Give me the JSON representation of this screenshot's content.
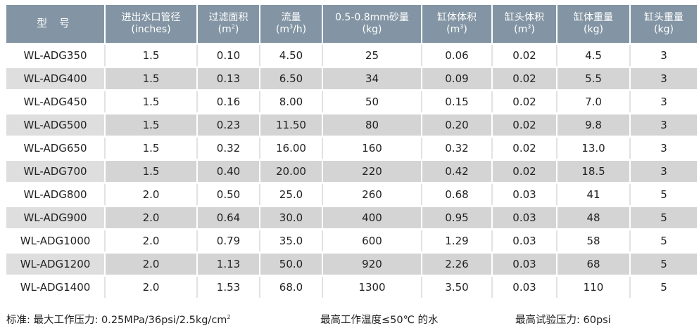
{
  "headers": [
    {
      "line1": "型 号",
      "unit": "",
      "sup": ""
    },
    {
      "line1": "进出水口管径",
      "unit": "(inches)",
      "sup": ""
    },
    {
      "line1": "过滤面积",
      "unit": "(m",
      "sup": "2",
      "unit_tail": ")"
    },
    {
      "line1": "流量",
      "unit": "(m",
      "sup": "3",
      "unit_tail": "/h)"
    },
    {
      "line1": "0.5-0.8mm砂量",
      "unit": "(kg)",
      "sup": ""
    },
    {
      "line1": "缸体体积",
      "unit": "(m",
      "sup": "3",
      "unit_tail": ")"
    },
    {
      "line1": "缸头体积",
      "unit": "(m",
      "sup": "3",
      "unit_tail": ")"
    },
    {
      "line1": "缸体重量",
      "unit": "(kg)",
      "sup": ""
    },
    {
      "line1": "缸头重量",
      "unit": "(kg)",
      "sup": ""
    }
  ],
  "rows": [
    [
      "WL-ADG350",
      "1.5",
      "0.10",
      "4.50",
      "25",
      "0.06",
      "0.02",
      "4.5",
      "3"
    ],
    [
      "WL-ADG400",
      "1.5",
      "0.13",
      "6.50",
      "34",
      "0.09",
      "0.02",
      "5.5",
      "3"
    ],
    [
      "WL-ADG450",
      "1.5",
      "0.16",
      "8.00",
      "50",
      "0.15",
      "0.02",
      "7.0",
      "3"
    ],
    [
      "WL-ADG500",
      "1.5",
      "0.23",
      "11.50",
      "80",
      "0.20",
      "0.02",
      "9.8",
      "3"
    ],
    [
      "WL-ADG650",
      "1.5",
      "0.32",
      "16.00",
      "160",
      "0.32",
      "0.02",
      "13.0",
      "3"
    ],
    [
      "WL-ADG700",
      "1.5",
      "0.40",
      "20.00",
      "220",
      "0.42",
      "0.02",
      "18.5",
      "3"
    ],
    [
      "WL-ADG800",
      "2.0",
      "0.50",
      "25.0",
      "260",
      "0.68",
      "0.03",
      "41",
      "5"
    ],
    [
      "WL-ADG900",
      "2.0",
      "0.64",
      "30.0",
      "400",
      "0.95",
      "0.03",
      "48",
      "5"
    ],
    [
      "WL-ADG1000",
      "2.0",
      "0.79",
      "35.0",
      "600",
      "1.29",
      "0.03",
      "58",
      "5"
    ],
    [
      "WL-ADG1200",
      "2.0",
      "1.13",
      "50.0",
      "920",
      "2.26",
      "0.03",
      "68",
      "5"
    ],
    [
      "WL-ADG1400",
      "2.0",
      "1.53",
      "68.0",
      "1300",
      "3.50",
      "0.03",
      "110",
      "5"
    ]
  ],
  "footer": {
    "standard": "标准: 最大工作压力: 0.25MPa/36psi/2.5kg/cm",
    "standard_sup": "2",
    "temperature": "最高工作温度≤50℃ 的水",
    "test_pressure": "最高试验压力: 60psi"
  },
  "colors": {
    "header_bg": "#8395a4",
    "row_dark": "#d4d4d4",
    "row_light": "#ffffff"
  }
}
